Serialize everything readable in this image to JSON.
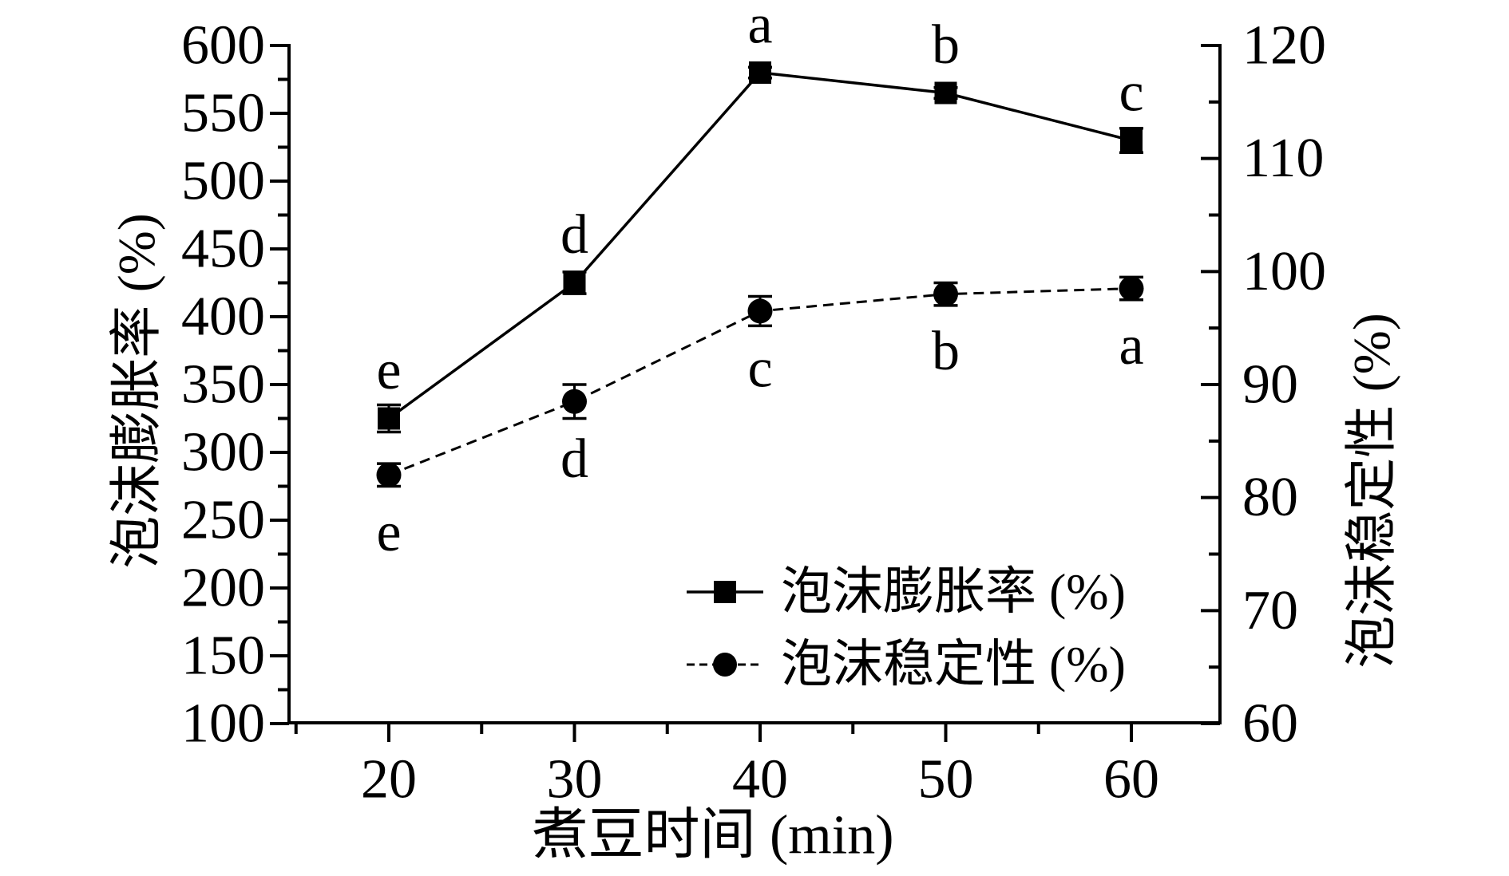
{
  "figure": {
    "x_axis_title": "煮豆时间 (min)",
    "left_axis_title": "泡沫膨胀率 (%)",
    "right_axis_title": "泡沫稳定性 (%)"
  },
  "chart_data": {
    "type": "line",
    "x": [
      20,
      30,
      40,
      50,
      60
    ],
    "xlabel": "煮豆时间 (min)",
    "x_axis": {
      "range": [
        20,
        60
      ],
      "tick_step": 10,
      "minor_step": 5
    },
    "left_axis": {
      "label": "泡沫膨胀率 (%)",
      "range": [
        100,
        600
      ],
      "tick_step": 50,
      "minor_step": 25
    },
    "right_axis": {
      "label": "泡沫稳定性 (%)",
      "range": [
        60,
        120
      ],
      "tick_step": 10,
      "minor_step": 5
    },
    "grid": "off",
    "legend_position": "inside lower right",
    "series": [
      {
        "name": "泡沫膨胀率 (%)",
        "axis": "left",
        "marker": "filled-square",
        "line": "solid",
        "values": [
          325,
          425,
          580,
          565,
          530
        ],
        "errors": [
          10,
          8,
          4,
          4,
          9
        ],
        "point_labels": [
          "e",
          "d",
          "a",
          "b",
          "c"
        ],
        "label_position": "above"
      },
      {
        "name": "泡沫稳定性 (%)",
        "axis": "right",
        "marker": "filled-circle",
        "line": "dashed",
        "values": [
          82,
          88.5,
          96.5,
          98,
          98.5
        ],
        "errors": [
          1,
          1.5,
          1.3,
          1,
          1
        ],
        "point_labels": [
          "e",
          "d",
          "c",
          "b",
          "a"
        ],
        "label_position": "below"
      }
    ],
    "colors": {
      "foreground": "#000000",
      "background": "#ffffff"
    }
  }
}
